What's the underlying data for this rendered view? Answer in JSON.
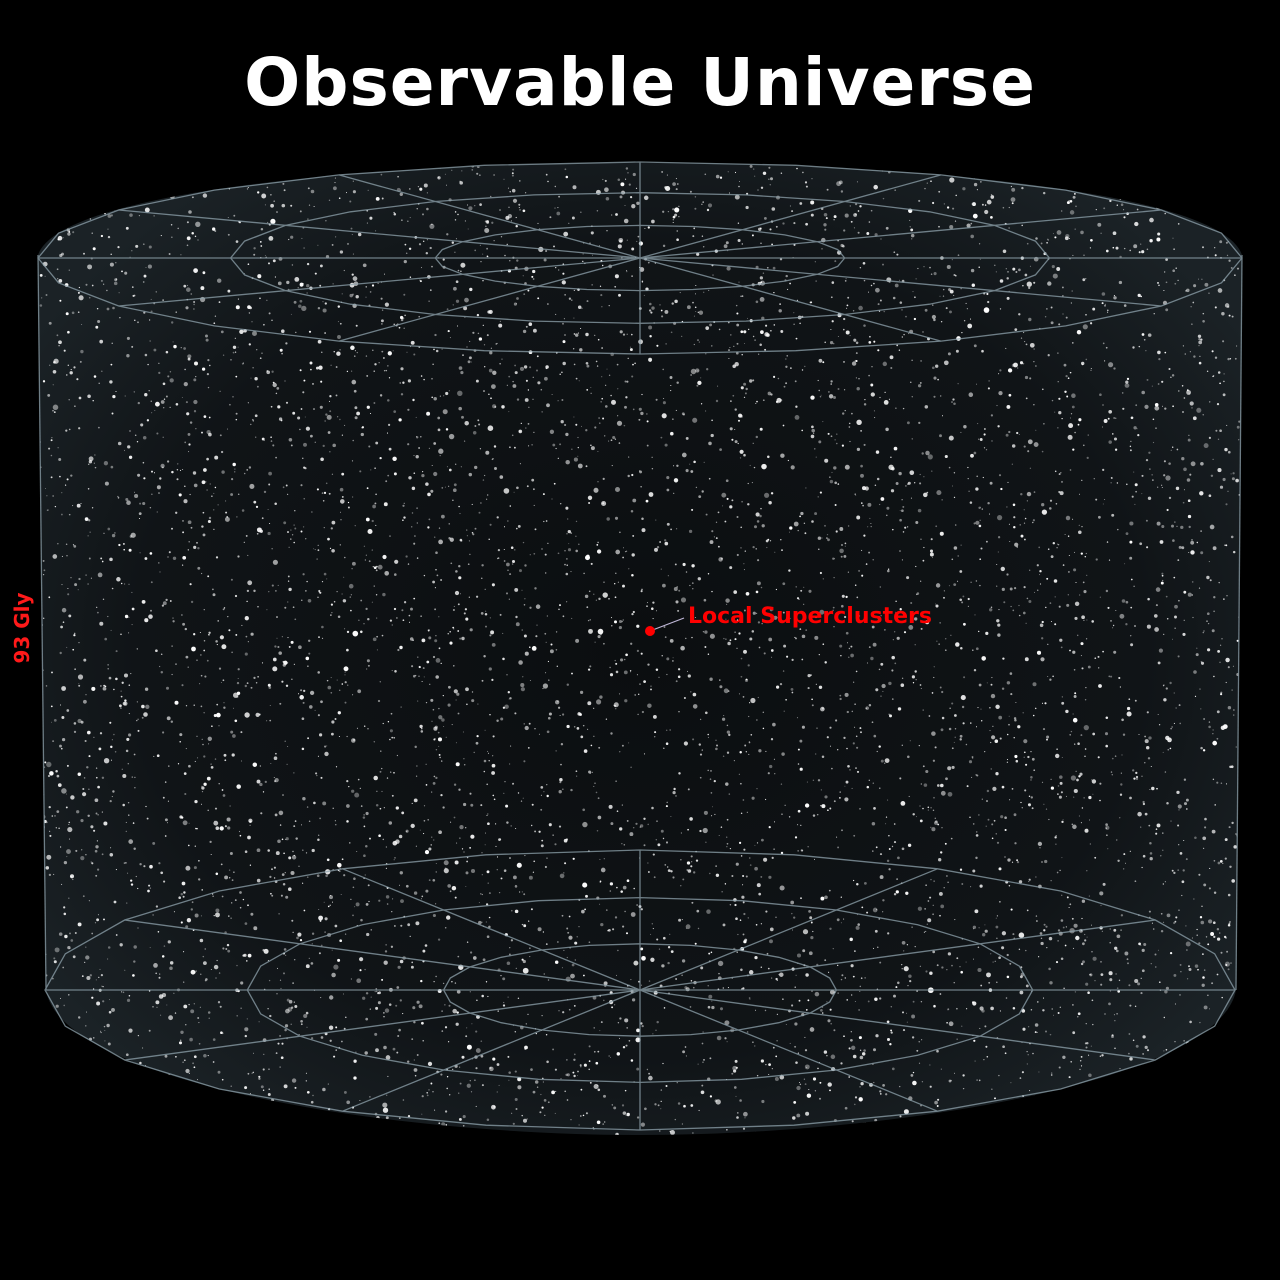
{
  "title": "Observable Universe",
  "marker": {
    "label": "Local Superclusters",
    "color": "#ff0000"
  },
  "scale": {
    "label": "93 Gly",
    "color": "#ff1a1a"
  },
  "colors": {
    "background": "#000000",
    "grid": "#8fa3ad",
    "stars": "#ffffff"
  }
}
